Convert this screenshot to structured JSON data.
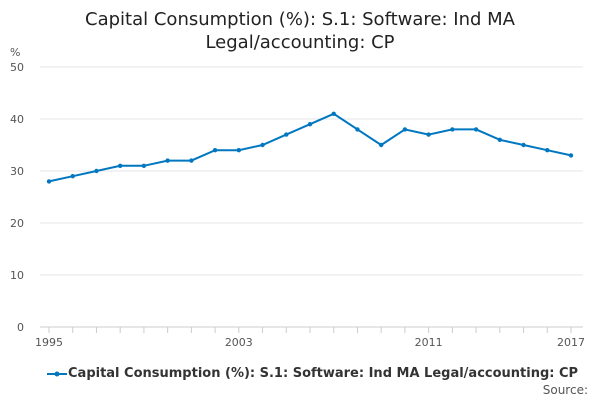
{
  "chart_data": {
    "type": "line",
    "title_line1": "Capital Consumption (%): S.1: Software: Ind MA",
    "title_line2": "Legal/accounting: CP",
    "ylabel": "%",
    "xlabel": "",
    "x": [
      1995,
      1996,
      1997,
      1998,
      1999,
      2000,
      2001,
      2002,
      2003,
      2004,
      2005,
      2006,
      2007,
      2008,
      2009,
      2010,
      2011,
      2012,
      2013,
      2014,
      2015,
      2016,
      2017
    ],
    "series": [
      {
        "name": "Capital Consumption (%): S.1: Software: Ind MA Legal/accounting: CP",
        "values": [
          28,
          29,
          30,
          31,
          31,
          32,
          32,
          34,
          34,
          35,
          37,
          39,
          41,
          38,
          35,
          38,
          37,
          38,
          38,
          36,
          35,
          34,
          33
        ],
        "color": "#0077c0"
      }
    ],
    "ylim": [
      0,
      50
    ],
    "yticks": [
      "0",
      "10",
      "20",
      "30",
      "40",
      "50"
    ],
    "xtick_labels": [
      "1995",
      "2003",
      "2011",
      "2017"
    ],
    "grid": true,
    "legend_position": "bottom"
  },
  "source_label": "Source:"
}
